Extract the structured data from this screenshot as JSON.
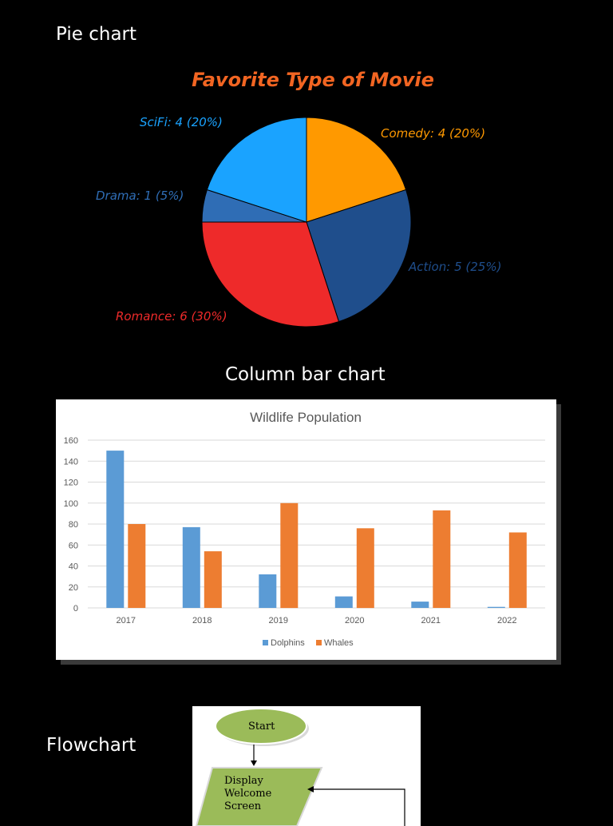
{
  "headings": {
    "pie": "Pie chart",
    "bar": "Column bar chart",
    "flow": "Flowchart"
  },
  "chart_data": [
    {
      "type": "pie",
      "title": "Favorite Type of Movie",
      "slices": [
        {
          "label": "Comedy: 4 (20%)",
          "value": 4,
          "color": "#FF9900"
        },
        {
          "label": "Action: 5 (25%)",
          "value": 5,
          "color": "#1F4E8C"
        },
        {
          "label": "Romance: 6 (30%)",
          "value": 6,
          "color": "#EE2A2A"
        },
        {
          "label": "Drama: 1 (5%)",
          "value": 1,
          "color": "#2F6DB5"
        },
        {
          "label": "SciFi: 4 (20%)",
          "value": 4,
          "color": "#1AA3FF"
        }
      ],
      "title_color": "#F26522"
    },
    {
      "type": "bar",
      "title": "Wildlife Population",
      "categories": [
        "2017",
        "2018",
        "2019",
        "2020",
        "2021",
        "2022"
      ],
      "series": [
        {
          "name": "Dolphins",
          "values": [
            150,
            77,
            32,
            11,
            6,
            1
          ],
          "color": "#5B9BD5"
        },
        {
          "name": "Whales",
          "values": [
            80,
            54,
            100,
            76,
            93,
            72
          ],
          "color": "#ED7D31"
        }
      ],
      "ylim": [
        0,
        160
      ],
      "yticks": [
        0,
        20,
        40,
        60,
        80,
        100,
        120,
        140,
        160
      ],
      "grid": true,
      "legend": "bottom"
    }
  ],
  "flowchart": {
    "start_label": "Start",
    "step_lines": [
      "Display",
      "Welcome",
      "Screen"
    ],
    "start_fill": "#9BBB59",
    "step_fill": "#9BBB59"
  }
}
